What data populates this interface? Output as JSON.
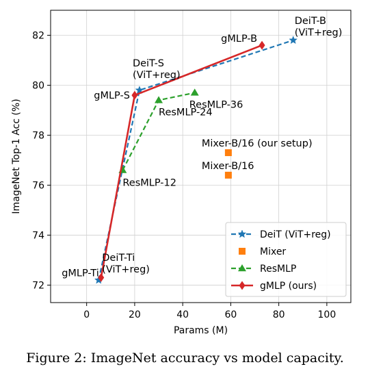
{
  "caption": "Figure 2: ImageNet accuracy vs model capacity.",
  "chart_data": {
    "type": "line",
    "xlabel": "Params (M)",
    "ylabel": "ImageNet Top-1 Acc (%)",
    "xlim": [
      -15,
      110
    ],
    "ylim": [
      71.3,
      83.0
    ],
    "xticks": [
      0,
      20,
      40,
      60,
      80,
      100
    ],
    "yticks": [
      72,
      74,
      76,
      78,
      80,
      82
    ],
    "grid": true,
    "legend_position": "lower-right",
    "series": [
      {
        "name": "DeiT (ViT+reg)",
        "color": "#1f77b4",
        "marker": "star",
        "linestyle": "dashed",
        "points": [
          {
            "x": 5,
            "y": 72.2,
            "label": "DeiT-Ti\n(ViT+reg)"
          },
          {
            "x": 22,
            "y": 79.8,
            "label": "DeiT-S\n(ViT+reg)"
          },
          {
            "x": 86,
            "y": 81.8,
            "label": "DeiT-B\n(ViT+reg)"
          }
        ]
      },
      {
        "name": "Mixer",
        "color": "#ff7f0e",
        "marker": "square",
        "linestyle": "none",
        "points": [
          {
            "x": 59,
            "y": 77.3,
            "label": "Mixer-B/16 (our setup)"
          },
          {
            "x": 59,
            "y": 76.4,
            "label": "Mixer-B/16"
          }
        ]
      },
      {
        "name": "ResMLP",
        "color": "#2ca02c",
        "marker": "triangle",
        "linestyle": "dashed",
        "points": [
          {
            "x": 15,
            "y": 76.6,
            "label": "ResMLP-12"
          },
          {
            "x": 30,
            "y": 79.4,
            "label": "ResMLP-24"
          },
          {
            "x": 45,
            "y": 79.7,
            "label": "ResMLP-36"
          }
        ]
      },
      {
        "name": "gMLP (ours)",
        "color": "#d62728",
        "marker": "diamond",
        "linestyle": "solid",
        "points": [
          {
            "x": 6,
            "y": 72.3,
            "label": "gMLP-Ti"
          },
          {
            "x": 20,
            "y": 79.6,
            "label": "gMLP-S"
          },
          {
            "x": 73,
            "y": 81.6,
            "label": "gMLP-B"
          }
        ]
      }
    ]
  }
}
